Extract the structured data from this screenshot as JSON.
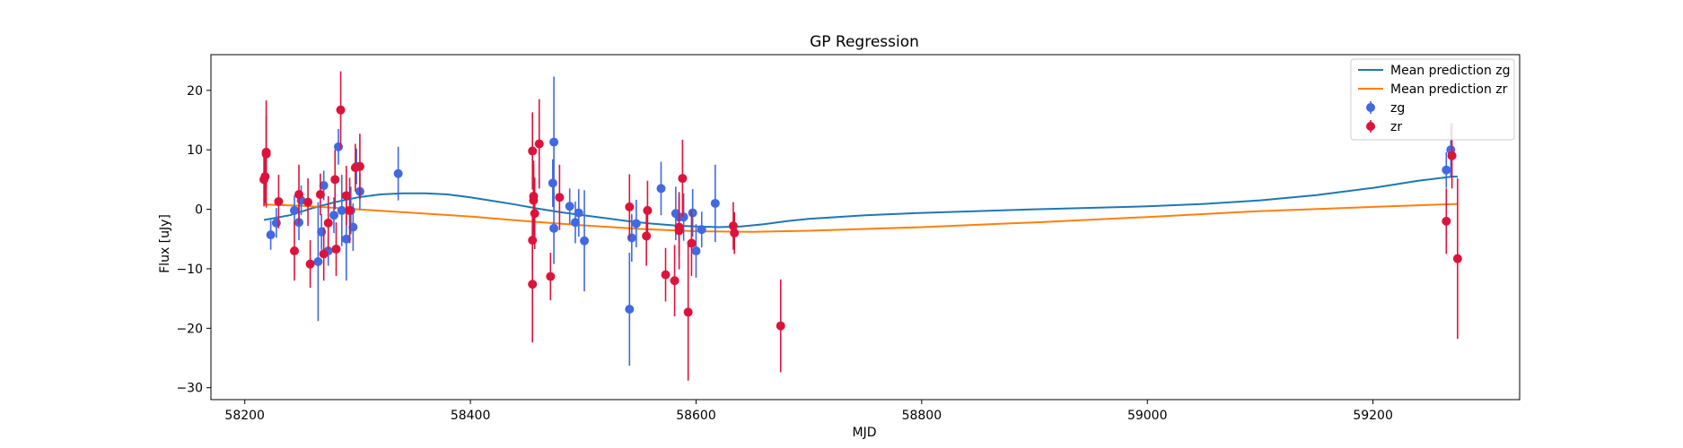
{
  "chart_data": {
    "type": "scatter",
    "title": "GP Regression",
    "xlabel": "MJD",
    "ylabel": "Flux [uJy]",
    "xlim": [
      58170,
      59330
    ],
    "ylim": [
      -32,
      26
    ],
    "xticks": [
      58200,
      58400,
      58600,
      58800,
      59000,
      59200
    ],
    "yticks": [
      -30,
      -20,
      -10,
      0,
      10,
      20
    ],
    "grid": false,
    "legend_position": "top-right",
    "legend": [
      "Mean prediction zg",
      "Mean prediction zr",
      "zg",
      "zr"
    ],
    "series": [
      {
        "name": "Mean prediction zg",
        "kind": "line",
        "color": "#1f77b4",
        "points": [
          [
            58217,
            -1.8
          ],
          [
            58240,
            -1.0
          ],
          [
            58260,
            0.2
          ],
          [
            58280,
            1.2
          ],
          [
            58300,
            2.0
          ],
          [
            58320,
            2.5
          ],
          [
            58340,
            2.7
          ],
          [
            58360,
            2.7
          ],
          [
            58380,
            2.5
          ],
          [
            58400,
            2.0
          ],
          [
            58420,
            1.4
          ],
          [
            58440,
            0.8
          ],
          [
            58460,
            0.1
          ],
          [
            58480,
            -0.5
          ],
          [
            58500,
            -1.0
          ],
          [
            58520,
            -1.5
          ],
          [
            58540,
            -2.0
          ],
          [
            58560,
            -2.4
          ],
          [
            58580,
            -2.7
          ],
          [
            58600,
            -2.9
          ],
          [
            58620,
            -3.0
          ],
          [
            58640,
            -2.9
          ],
          [
            58660,
            -2.5
          ],
          [
            58680,
            -2.0
          ],
          [
            58700,
            -1.6
          ],
          [
            58750,
            -1.0
          ],
          [
            58800,
            -0.6
          ],
          [
            58900,
            0.0
          ],
          [
            59000,
            0.5
          ],
          [
            59050,
            0.9
          ],
          [
            59100,
            1.5
          ],
          [
            59150,
            2.4
          ],
          [
            59200,
            3.6
          ],
          [
            59240,
            4.8
          ],
          [
            59270,
            5.5
          ],
          [
            59275,
            5.5
          ]
        ]
      },
      {
        "name": "Mean prediction zr",
        "kind": "line",
        "color": "#ff7f0e",
        "points": [
          [
            58217,
            0.8
          ],
          [
            58250,
            0.6
          ],
          [
            58300,
            0.0
          ],
          [
            58350,
            -0.6
          ],
          [
            58400,
            -1.2
          ],
          [
            58450,
            -2.0
          ],
          [
            58500,
            -2.7
          ],
          [
            58550,
            -3.3
          ],
          [
            58600,
            -3.7
          ],
          [
            58650,
            -3.8
          ],
          [
            58700,
            -3.6
          ],
          [
            58800,
            -3.0
          ],
          [
            58900,
            -2.2
          ],
          [
            59000,
            -1.3
          ],
          [
            59100,
            -0.3
          ],
          [
            59200,
            0.4
          ],
          [
            59275,
            0.9
          ]
        ]
      },
      {
        "name": "zg",
        "kind": "errorbar",
        "color": "#4169e1",
        "points": [
          {
            "x": 58223,
            "y": -4.3,
            "e": 2.5
          },
          {
            "x": 58228,
            "y": -2.3,
            "e": 2.5
          },
          {
            "x": 58244,
            "y": -0.2,
            "e": 2.5
          },
          {
            "x": 58248,
            "y": -2.2,
            "e": 3
          },
          {
            "x": 58250,
            "y": 1.5,
            "e": 2.5
          },
          {
            "x": 58265,
            "y": -8.8,
            "e": 10
          },
          {
            "x": 58268,
            "y": -3.8,
            "e": 3
          },
          {
            "x": 58270,
            "y": 4.0,
            "e": 2.5
          },
          {
            "x": 58274,
            "y": -7.0,
            "e": 2.5
          },
          {
            "x": 58279,
            "y": -1.0,
            "e": 3
          },
          {
            "x": 58283,
            "y": 10.5,
            "e": 3
          },
          {
            "x": 58286,
            "y": -0.2,
            "e": 6
          },
          {
            "x": 58290,
            "y": -5.0,
            "e": 7
          },
          {
            "x": 58294,
            "y": -0.2,
            "e": 4
          },
          {
            "x": 58296,
            "y": -3.0,
            "e": 4
          },
          {
            "x": 58299,
            "y": 7.2,
            "e": 3
          },
          {
            "x": 58302,
            "y": 3.0,
            "e": 3
          },
          {
            "x": 58336,
            "y": 6.0,
            "e": 4.5
          },
          {
            "x": 58473,
            "y": 4.4,
            "e": 4
          },
          {
            "x": 58474,
            "y": 11.3,
            "e": 11
          },
          {
            "x": 58474,
            "y": -3.2,
            "e": 6
          },
          {
            "x": 58488,
            "y": 0.5,
            "e": 3
          },
          {
            "x": 58493,
            "y": -2.2,
            "e": 3.5
          },
          {
            "x": 58496,
            "y": -0.6,
            "e": 4
          },
          {
            "x": 58501,
            "y": -5.3,
            "e": 8.5
          },
          {
            "x": 58541,
            "y": -16.8,
            "e": 9.5
          },
          {
            "x": 58543,
            "y": -4.8,
            "e": 4
          },
          {
            "x": 58547,
            "y": -2.4,
            "e": 4
          },
          {
            "x": 58569,
            "y": 3.5,
            "e": 4.5
          },
          {
            "x": 58582,
            "y": -0.7,
            "e": 4.5
          },
          {
            "x": 58585,
            "y": -1.3,
            "e": 4
          },
          {
            "x": 58589,
            "y": -1.3,
            "e": 4
          },
          {
            "x": 58597,
            "y": -0.6,
            "e": 4
          },
          {
            "x": 58600,
            "y": -7.0,
            "e": 4.5
          },
          {
            "x": 58605,
            "y": -3.4,
            "e": 3
          },
          {
            "x": 58617,
            "y": 1.0,
            "e": 6.5
          },
          {
            "x": 59265,
            "y": 6.6,
            "e": 3
          },
          {
            "x": 59269,
            "y": 10.0,
            "e": 4.5
          }
        ]
      },
      {
        "name": "zr",
        "kind": "errorbar",
        "color": "#dc143c",
        "points": [
          {
            "x": 58217,
            "y": 5.0,
            "e": 4.5
          },
          {
            "x": 58218,
            "y": 5.5,
            "e": 4.5
          },
          {
            "x": 58219,
            "y": 9.3,
            "e": 9
          },
          {
            "x": 58219,
            "y": 9.6,
            "e": 6
          },
          {
            "x": 58230,
            "y": 1.3,
            "e": 4.5
          },
          {
            "x": 58244,
            "y": -7.0,
            "e": 5
          },
          {
            "x": 58248,
            "y": 2.5,
            "e": 5
          },
          {
            "x": 58256,
            "y": 1.2,
            "e": 4
          },
          {
            "x": 58258,
            "y": -9.2,
            "e": 4
          },
          {
            "x": 58267,
            "y": 2.5,
            "e": 3.5
          },
          {
            "x": 58270,
            "y": -7.5,
            "e": 4.5
          },
          {
            "x": 58274,
            "y": -2.3,
            "e": 4.5
          },
          {
            "x": 58280,
            "y": 5.0,
            "e": 5
          },
          {
            "x": 58281,
            "y": -6.7,
            "e": 4.5
          },
          {
            "x": 58285,
            "y": 16.7,
            "e": 6.5
          },
          {
            "x": 58290,
            "y": 2.3,
            "e": 5
          },
          {
            "x": 58293,
            "y": -0.2,
            "e": 5.5
          },
          {
            "x": 58298,
            "y": 7.0,
            "e": 4
          },
          {
            "x": 58302,
            "y": 7.2,
            "e": 5.5
          },
          {
            "x": 58455,
            "y": 9.8,
            "e": 6.5
          },
          {
            "x": 58455,
            "y": -12.6,
            "e": 9.8
          },
          {
            "x": 58455,
            "y": -5.2,
            "e": 5
          },
          {
            "x": 58456,
            "y": 2.2,
            "e": 6
          },
          {
            "x": 58456,
            "y": 1.5,
            "e": 6
          },
          {
            "x": 58457,
            "y": -0.7,
            "e": 6
          },
          {
            "x": 58461,
            "y": 11.0,
            "e": 7.5
          },
          {
            "x": 58471,
            "y": -11.3,
            "e": 4
          },
          {
            "x": 58479,
            "y": 2.0,
            "e": 5.5
          },
          {
            "x": 58541,
            "y": 0.4,
            "e": 5.5
          },
          {
            "x": 58556,
            "y": -4.5,
            "e": 5
          },
          {
            "x": 58557,
            "y": -0.2,
            "e": 5
          },
          {
            "x": 58573,
            "y": -11.0,
            "e": 4.5
          },
          {
            "x": 58581,
            "y": -12.0,
            "e": 6
          },
          {
            "x": 58585,
            "y": -3.0,
            "e": 5
          },
          {
            "x": 58585,
            "y": -3.6,
            "e": 6.5
          },
          {
            "x": 58588,
            "y": 5.2,
            "e": 6.5
          },
          {
            "x": 58593,
            "y": -17.3,
            "e": 11.5
          },
          {
            "x": 58596,
            "y": -5.7,
            "e": 5.5
          },
          {
            "x": 58633,
            "y": -2.8,
            "e": 4
          },
          {
            "x": 58634,
            "y": -4.0,
            "e": 3.5
          },
          {
            "x": 58675,
            "y": -19.6,
            "e": 7.8
          },
          {
            "x": 59265,
            "y": -2.0,
            "e": 5.5
          },
          {
            "x": 59270,
            "y": 9.0,
            "e": 5.5
          },
          {
            "x": 59275,
            "y": -8.3,
            "e": 13.5
          }
        ]
      }
    ]
  }
}
